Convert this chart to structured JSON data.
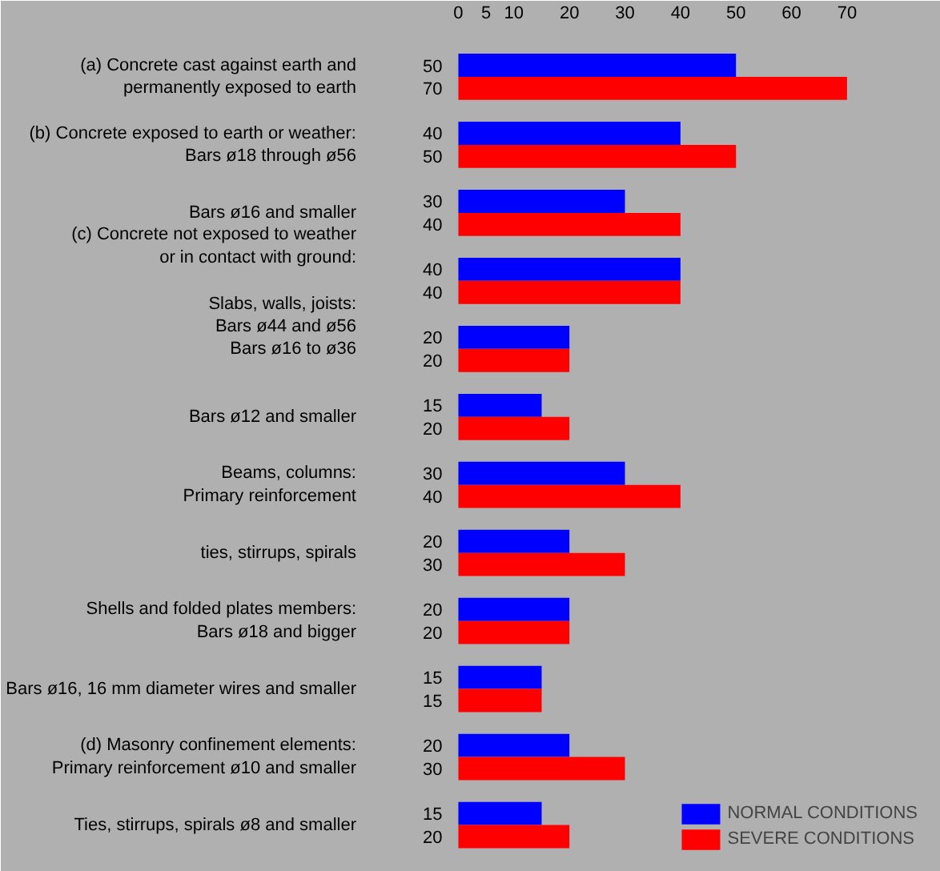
{
  "chart_data": {
    "type": "bar",
    "orientation": "horizontal",
    "categories": [
      "(a) Concrete cast against earth and\npermanently exposed to earth",
      "(b) Concrete exposed to earth or weather:\nBars ø18 through ø56",
      "Bars ø16 and smaller",
      "(c) Concrete not exposed to weather\nor in contact with ground:\n\nSlabs, walls, joists:\nBars ø44 and ø56",
      "Bars ø16 to ø36",
      "Bars ø12 and smaller",
      "Beams, columns:\nPrimary reinforcement",
      "ties, stirrups, spirals",
      "Shells and folded plates members:\nBars ø18 and bigger",
      "Bars ø16, 16 mm diameter wires and smaller",
      "(d) Masonry confinement elements:\nPrimary reinforcement ø10 and smaller",
      "Ties, stirrups, spirals ø8 and smaller"
    ],
    "series": [
      {
        "name": "NORMAL CONDITIONS",
        "color": "#0000ff",
        "values": [
          50,
          40,
          30,
          40,
          20,
          15,
          30,
          20,
          20,
          15,
          20,
          15
        ]
      },
      {
        "name": "SEVERE CONDITIONS",
        "color": "#ff0000",
        "values": [
          70,
          50,
          40,
          40,
          20,
          20,
          40,
          30,
          20,
          15,
          30,
          20
        ]
      }
    ],
    "xlim": [
      -8,
      84
    ],
    "xticks": [
      0,
      5,
      10,
      20,
      30,
      40,
      50,
      60,
      70
    ],
    "data_labels": true,
    "legend": "bottom right"
  }
}
